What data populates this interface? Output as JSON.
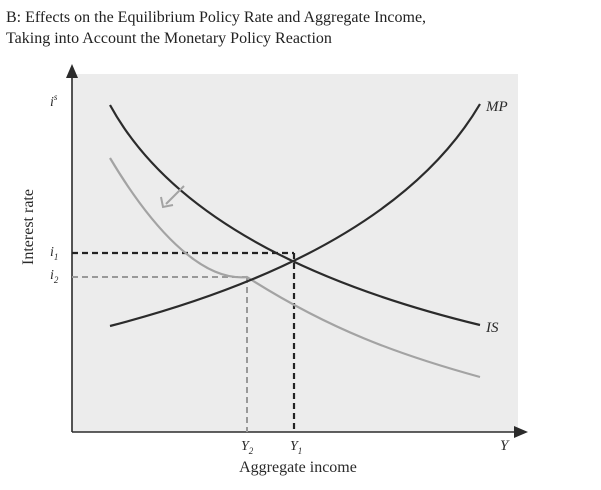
{
  "title": {
    "line1": "B: Effects on the Equilibrium Policy Rate and Aggregate Income,",
    "line2": "Taking into Account the Monetary Policy Reaction"
  },
  "axes": {
    "x_label": "Aggregate income",
    "y_label": "Interest rate",
    "x_symbol": "Y",
    "y_symbol_base": "i",
    "y_symbol_sup": "s"
  },
  "curves": {
    "mp_label": "MP",
    "is_label": "IS"
  },
  "levels": {
    "i1_base": "i",
    "i1_sub": "1",
    "i2_base": "i",
    "i2_sub": "2",
    "y1_base": "Y",
    "y1_sub": "1",
    "y2_base": "Y",
    "y2_sub": "2"
  },
  "colors": {
    "primary_curve": "#2b2b2b",
    "shifted_curve": "#a3a3a3",
    "background": "#ececec"
  }
}
